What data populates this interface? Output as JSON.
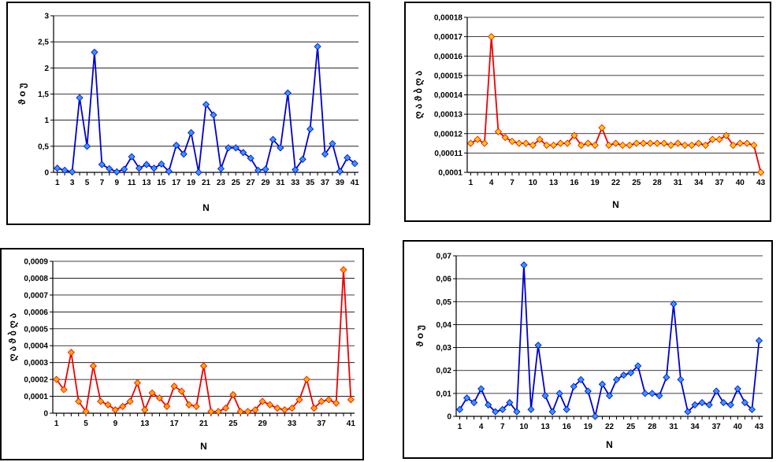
{
  "chart_data": [
    {
      "type": "line",
      "xlabel": "N",
      "ylabel": "ϑ ο უ",
      "ylim": [
        0,
        3
      ],
      "yticks": [
        0,
        0.5,
        1,
        1.5,
        2,
        2.5,
        3
      ],
      "ytick_labels": [
        "0",
        "0,5",
        "1",
        "1,5",
        "2",
        "2,5",
        "3"
      ],
      "x": [
        1,
        2,
        3,
        4,
        5,
        6,
        7,
        8,
        9,
        10,
        11,
        12,
        13,
        14,
        15,
        16,
        17,
        18,
        19,
        20,
        21,
        22,
        23,
        24,
        25,
        26,
        27,
        28,
        29,
        30,
        31,
        32,
        33,
        34,
        35,
        36,
        37,
        38,
        39,
        40,
        41
      ],
      "xtick_values": [
        1,
        3,
        5,
        7,
        9,
        11,
        13,
        15,
        17,
        19,
        21,
        23,
        25,
        27,
        29,
        31,
        33,
        35,
        37,
        39,
        41
      ],
      "xtick_labels": [
        "1",
        "3",
        "5",
        "7",
        "9",
        "11",
        "13",
        "15",
        "17",
        "19",
        "21",
        "23",
        "25",
        "27",
        "29",
        "31",
        "33",
        "35",
        "37",
        "39",
        "41"
      ],
      "grid": true,
      "line_color": "#0000cc",
      "marker_color": "#3399ff",
      "series": [
        {
          "values": [
            0.08,
            0.04,
            0.01,
            1.43,
            0.5,
            2.3,
            0.15,
            0.07,
            0.01,
            0.06,
            0.3,
            0.08,
            0.15,
            0.08,
            0.16,
            0.02,
            0.52,
            0.35,
            0.76,
            0.0,
            1.3,
            1.1,
            0.07,
            0.47,
            0.47,
            0.38,
            0.27,
            0.04,
            0.06,
            0.63,
            0.47,
            1.52,
            0.05,
            0.25,
            0.83,
            2.41,
            0.35,
            0.55,
            0.02,
            0.28,
            0.17
          ]
        }
      ]
    },
    {
      "type": "line",
      "xlabel": "N",
      "ylabel": "ღ ა ϑ ბ ღ ა",
      "ylim": [
        0.0001,
        0.00018
      ],
      "yticks": [
        0.0001,
        0.00011,
        0.00012,
        0.00013,
        0.00014,
        0.00015,
        0.00016,
        0.00017,
        0.00018
      ],
      "ytick_labels": [
        "0,0001",
        "0,00011",
        "0,00012",
        "0,00013",
        "0,00014",
        "0,00015",
        "0,00016",
        "0,00017",
        "0,00018"
      ],
      "x": [
        1,
        2,
        3,
        4,
        5,
        6,
        7,
        8,
        9,
        10,
        11,
        12,
        13,
        14,
        15,
        16,
        17,
        18,
        19,
        20,
        21,
        22,
        23,
        24,
        25,
        26,
        27,
        28,
        29,
        30,
        31,
        32,
        33,
        34,
        35,
        36,
        37,
        38,
        39,
        40,
        41,
        42,
        43
      ],
      "xtick_values": [
        1,
        4,
        7,
        10,
        13,
        16,
        19,
        22,
        25,
        28,
        31,
        34,
        37,
        40,
        43
      ],
      "xtick_labels": [
        "1",
        "4",
        "7",
        "10",
        "13",
        "16",
        "19",
        "22",
        "25",
        "28",
        "31",
        "34",
        "37",
        "40",
        "43"
      ],
      "grid": true,
      "line_color": "#ee0000",
      "marker_color": "#ffcc00",
      "series": [
        {
          "values": [
            0.000115,
            0.000117,
            0.000115,
            0.00017,
            0.000121,
            0.000118,
            0.000116,
            0.000115,
            0.000115,
            0.000114,
            0.000117,
            0.000114,
            0.000114,
            0.000115,
            0.000115,
            0.000119,
            0.000114,
            0.000115,
            0.000114,
            0.000123,
            0.000114,
            0.000115,
            0.000114,
            0.000114,
            0.000115,
            0.000115,
            0.000115,
            0.000115,
            0.000115,
            0.000114,
            0.000115,
            0.000114,
            0.000114,
            0.000115,
            0.000114,
            0.000117,
            0.000117,
            0.000119,
            0.000114,
            0.000115,
            0.000115,
            0.000114,
            0.0001
          ]
        }
      ]
    },
    {
      "type": "line",
      "xlabel": "N",
      "ylabel": "ღ ა ϑ ბ ღ ა",
      "ylim": [
        0,
        0.0009
      ],
      "yticks": [
        0,
        0.0001,
        0.0002,
        0.0003,
        0.0004,
        0.0005,
        0.0006,
        0.0007,
        0.0008,
        0.0009
      ],
      "ytick_labels": [
        "0",
        "0,0001",
        "0,0002",
        "0,0003",
        "0,0004",
        "0,0005",
        "0,0006",
        "0,0007",
        "0,0008",
        "0,0009"
      ],
      "x": [
        1,
        2,
        3,
        4,
        5,
        6,
        7,
        8,
        9,
        10,
        11,
        12,
        13,
        14,
        15,
        16,
        17,
        18,
        19,
        20,
        21,
        22,
        23,
        24,
        25,
        26,
        27,
        28,
        29,
        30,
        31,
        32,
        33,
        34,
        35,
        36,
        37,
        38,
        39,
        40,
        41
      ],
      "xtick_values": [
        1,
        5,
        9,
        13,
        17,
        21,
        25,
        29,
        33,
        37,
        41
      ],
      "xtick_labels": [
        "1",
        "5",
        "9",
        "13",
        "17",
        "21",
        "25",
        "29",
        "33",
        "37",
        "41"
      ],
      "xtick_values_secondary": [
        3,
        7,
        11,
        15,
        19,
        23,
        27,
        31,
        35,
        39
      ],
      "xtick_labels_secondary": [
        "",
        "",
        "",
        "",
        "",
        "",
        "",
        "",
        "",
        ""
      ],
      "grid": true,
      "line_color": "#ee0000",
      "marker_color": "#ffaa00",
      "series": [
        {
          "values": [
            0.0002,
            0.00014,
            0.00036,
            7e-05,
            1e-05,
            0.00028,
            7e-05,
            5e-05,
            2e-05,
            4e-05,
            7e-05,
            0.00018,
            2e-05,
            0.00012,
            9e-05,
            4e-05,
            0.00016,
            0.00013,
            5e-05,
            4e-05,
            0.00028,
            1e-05,
            1e-05,
            3e-05,
            0.00011,
            1e-05,
            1e-05,
            2e-05,
            7e-05,
            5e-05,
            3e-05,
            2e-05,
            3e-05,
            8e-05,
            0.0002,
            3e-05,
            7e-05,
            8e-05,
            6e-05,
            0.00085,
            8e-05
          ]
        }
      ]
    },
    {
      "type": "line",
      "xlabel": "N",
      "ylabel": "ϑ ο უ",
      "ylim": [
        0,
        0.07
      ],
      "yticks": [
        0,
        0.01,
        0.02,
        0.03,
        0.04,
        0.05,
        0.06,
        0.07
      ],
      "ytick_labels": [
        "0",
        "0,01",
        "0,02",
        "0,03",
        "0,04",
        "0,05",
        "0,06",
        "0,07"
      ],
      "x": [
        1,
        2,
        3,
        4,
        5,
        6,
        7,
        8,
        9,
        10,
        11,
        12,
        13,
        14,
        15,
        16,
        17,
        18,
        19,
        20,
        21,
        22,
        23,
        24,
        25,
        26,
        27,
        28,
        29,
        30,
        31,
        32,
        33,
        34,
        35,
        36,
        37,
        38,
        39,
        40,
        41,
        42,
        43
      ],
      "xtick_values": [
        1,
        4,
        7,
        10,
        13,
        16,
        19,
        22,
        25,
        28,
        31,
        34,
        37,
        40,
        43
      ],
      "xtick_labels": [
        "1",
        "4",
        "7",
        "10",
        "13",
        "16",
        "19",
        "22",
        "25",
        "28",
        "31",
        "34",
        "37",
        "40",
        "43"
      ],
      "grid": true,
      "line_color": "#0000cc",
      "marker_color": "#3399ff",
      "series": [
        {
          "values": [
            0.003,
            0.008,
            0.006,
            0.012,
            0.005,
            0.002,
            0.003,
            0.006,
            0.002,
            0.066,
            0.003,
            0.031,
            0.009,
            0.002,
            0.01,
            0.003,
            0.013,
            0.016,
            0.011,
            0.0,
            0.014,
            0.009,
            0.016,
            0.018,
            0.019,
            0.022,
            0.01,
            0.01,
            0.009,
            0.017,
            0.049,
            0.016,
            0.002,
            0.005,
            0.006,
            0.005,
            0.011,
            0.006,
            0.005,
            0.012,
            0.006,
            0.003,
            0.033
          ]
        }
      ]
    }
  ]
}
